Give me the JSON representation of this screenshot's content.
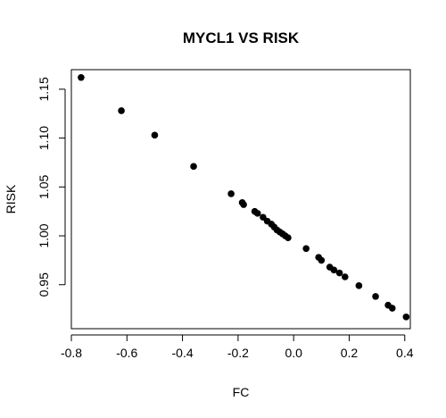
{
  "chart_data": {
    "type": "scatter",
    "title": "MYCL1 VS RISK",
    "xlabel": "FC",
    "ylabel": "RISK",
    "xlim": [
      -0.8,
      0.42
    ],
    "ylim": [
      0.905,
      1.17
    ],
    "x_ticks": [
      -0.8,
      -0.6,
      -0.4,
      -0.2,
      0.0,
      0.2,
      0.4
    ],
    "x_tick_labels": [
      "-0.8",
      "-0.6",
      "-0.4",
      "-0.2",
      "0.0",
      "0.2",
      "0.4"
    ],
    "y_ticks": [
      0.95,
      1.0,
      1.05,
      1.1,
      1.15
    ],
    "y_tick_labels": [
      "0.95",
      "1.00",
      "1.05",
      "1.10",
      "1.15"
    ],
    "grid": false,
    "legend": "none",
    "point_color": "#000000",
    "series": [
      {
        "x": [
          -0.765,
          -0.62,
          -0.5,
          -0.36,
          -0.225,
          -0.185,
          -0.18,
          -0.14,
          -0.13,
          -0.11,
          -0.095,
          -0.08,
          -0.07,
          -0.06,
          -0.05,
          -0.04,
          -0.03,
          -0.02,
          0.045,
          0.09,
          0.1,
          0.13,
          0.145,
          0.165,
          0.185,
          0.235,
          0.295,
          0.34,
          0.355,
          0.405
        ],
        "y": [
          1.162,
          1.128,
          1.103,
          1.071,
          1.043,
          1.034,
          1.032,
          1.025,
          1.023,
          1.019,
          1.015,
          1.012,
          1.009,
          1.006,
          1.004,
          1.002,
          1.0,
          0.998,
          0.987,
          0.978,
          0.975,
          0.968,
          0.965,
          0.962,
          0.958,
          0.949,
          0.938,
          0.929,
          0.926,
          0.917
        ]
      }
    ]
  }
}
